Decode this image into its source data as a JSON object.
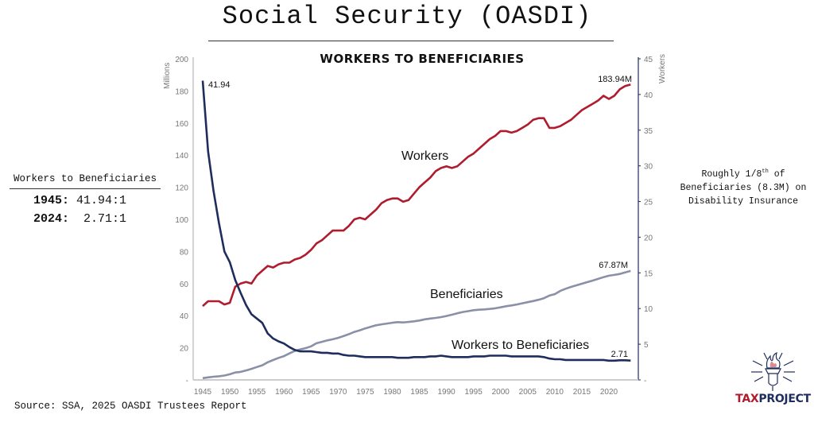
{
  "header": {
    "title": "Social Security (OASDI)"
  },
  "left_panel": {
    "heading": "Workers to Beneficiaries",
    "rows": [
      {
        "year": "1945:",
        "ratio": " 41.94:1"
      },
      {
        "year": "2024:",
        "ratio": "  2.71:1"
      }
    ]
  },
  "note": {
    "line1_a": "Roughly 1/8",
    "line1_sup": "th",
    "line1_b": " of",
    "line2": "Beneficiaries (8.3M) on",
    "line3": "Disability Insurance"
  },
  "source": "Source: SSA, 2025 OASDI Trustees Report",
  "logo": {
    "part1": "TAX",
    "part2": "PROJECT",
    "icon": "torch-icon"
  },
  "colors": {
    "workers": "#b01c2e",
    "beneficiaries": "#8a90a6",
    "ratio": "#1f2d5c",
    "axis_text": "#777777",
    "logo_red": "#b01c2e",
    "logo_blue": "#1f2d5c"
  },
  "chart_data": {
    "type": "line",
    "title": "WORKERS TO BENEFICIARIES",
    "ylabel": "Millions",
    "y2label": "Workers",
    "ylim": [
      0,
      200
    ],
    "y2lim": [
      0,
      45
    ],
    "yticks": [
      "-",
      "20",
      "40",
      "60",
      "80",
      "100",
      "120",
      "140",
      "160",
      "180",
      "200"
    ],
    "y2ticks": [
      "-",
      "5",
      "10",
      "15",
      "20",
      "25",
      "30",
      "35",
      "40",
      "45"
    ],
    "xticks": [
      "1945",
      "1950",
      "1955",
      "1960",
      "1965",
      "1970",
      "1975",
      "1980",
      "1985",
      "1990",
      "1995",
      "2000",
      "2005",
      "2010",
      "2015",
      "2020"
    ],
    "x_start": 1945,
    "series": [
      {
        "name": "Workers",
        "axis": "left",
        "label": "Workers",
        "end_label": "183.94M",
        "values": [
          46,
          49,
          49,
          49,
          47,
          48,
          58,
          60,
          61,
          60,
          65,
          68,
          71,
          70,
          72,
          73,
          73,
          75,
          76,
          78,
          81,
          85,
          87,
          90,
          93,
          93,
          93,
          96,
          100,
          101,
          100,
          103,
          106,
          110,
          112,
          113,
          113,
          111,
          112,
          116,
          120,
          123,
          126,
          130,
          132,
          133,
          132,
          133,
          136,
          139,
          141,
          144,
          147,
          150,
          152,
          155,
          155,
          154,
          155,
          157,
          159,
          162,
          163,
          163,
          157,
          157,
          158,
          160,
          162,
          165,
          168,
          170,
          172,
          174,
          177,
          175,
          177,
          181,
          183,
          183.94
        ]
      },
      {
        "name": "Beneficiaries",
        "axis": "left",
        "label": "Beneficiaries",
        "end_label": "67.87M",
        "values": [
          1.1,
          1.6,
          2.0,
          2.3,
          2.7,
          3.5,
          4.6,
          5.0,
          5.9,
          6.9,
          8.0,
          9.1,
          11,
          12.4,
          13.7,
          14.8,
          16.5,
          18,
          19,
          19.8,
          20.9,
          22.8,
          23.7,
          24.6,
          25.3,
          26.2,
          27.3,
          28.5,
          29.9,
          30.9,
          32.1,
          33,
          34,
          34.6,
          35.1,
          35.6,
          36,
          35.8,
          36.1,
          36.5,
          37,
          37.7,
          38.2,
          38.6,
          39.1,
          39.8,
          40.6,
          41.5,
          42.3,
          42.8,
          43.4,
          43.7,
          43.9,
          44.2,
          44.6,
          45.2,
          45.9,
          46.4,
          47,
          47.7,
          48.4,
          49.1,
          49.9,
          50.9,
          52.5,
          53.4,
          55.4,
          56.8,
          57.9,
          58.9,
          59.9,
          60.9,
          61.9,
          62.9,
          64,
          64.9,
          65.4,
          66,
          67,
          67.87
        ]
      },
      {
        "name": "Workers to Beneficiaries",
        "axis": "right",
        "label": "Workers to Beneficiaries",
        "start_label": "41.94",
        "end_label": "2.71",
        "values": [
          41.94,
          32,
          26.5,
          22,
          18,
          16.5,
          14,
          12.2,
          10.5,
          9.2,
          8.6,
          8,
          6.5,
          5.8,
          5.4,
          5.1,
          4.6,
          4.2,
          4.0,
          4.0,
          4.0,
          3.9,
          3.8,
          3.8,
          3.7,
          3.7,
          3.5,
          3.4,
          3.4,
          3.3,
          3.2,
          3.2,
          3.2,
          3.2,
          3.2,
          3.2,
          3.1,
          3.1,
          3.1,
          3.2,
          3.2,
          3.2,
          3.3,
          3.3,
          3.4,
          3.3,
          3.2,
          3.2,
          3.2,
          3.2,
          3.3,
          3.3,
          3.3,
          3.4,
          3.4,
          3.4,
          3.4,
          3.3,
          3.3,
          3.3,
          3.3,
          3.3,
          3.3,
          3.2,
          3.0,
          2.9,
          2.9,
          2.8,
          2.8,
          2.8,
          2.8,
          2.8,
          2.8,
          2.8,
          2.8,
          2.7,
          2.7,
          2.75,
          2.75,
          2.71
        ]
      }
    ]
  }
}
